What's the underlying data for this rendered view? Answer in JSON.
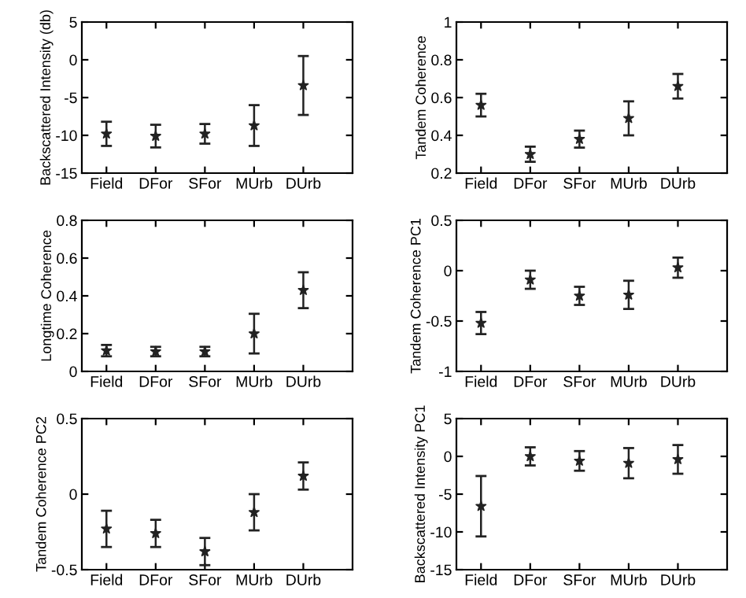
{
  "chart_data": [
    {
      "type": "scatter",
      "ylabel": "Backscattered Intensity (db)",
      "categories": [
        "Field",
        "DFor",
        "SFor",
        "MUrb",
        "DUrb"
      ],
      "series": [
        {
          "color": "#222222",
          "values": [
            -9.8,
            -10.1,
            -9.8,
            -8.7,
            -3.4
          ],
          "errors": [
            1.6,
            1.5,
            1.3,
            2.7,
            3.9
          ]
        }
      ],
      "ylim": [
        -15,
        5
      ],
      "yticks": [
        -15,
        -10,
        -5,
        0,
        5
      ],
      "marker": "star",
      "grid": false,
      "legend": false
    },
    {
      "type": "scatter",
      "ylabel": "Tandem Coherence",
      "categories": [
        "Field",
        "DFor",
        "SFor",
        "MUrb",
        "DUrb"
      ],
      "series": [
        {
          "color": "#222222",
          "values": [
            0.56,
            0.3,
            0.38,
            0.49,
            0.66
          ],
          "errors": [
            0.06,
            0.04,
            0.045,
            0.09,
            0.065
          ]
        }
      ],
      "ylim": [
        0.2,
        1
      ],
      "yticks": [
        0.2,
        0.4,
        0.6,
        0.8,
        1
      ],
      "marker": "star",
      "grid": false,
      "legend": false
    },
    {
      "type": "scatter",
      "ylabel": "Longtime Coherence",
      "categories": [
        "Field",
        "DFor",
        "SFor",
        "MUrb",
        "DUrb"
      ],
      "series": [
        {
          "color": "#222222",
          "values": [
            0.11,
            0.105,
            0.105,
            0.2,
            0.43
          ],
          "errors": [
            0.03,
            0.025,
            0.025,
            0.105,
            0.095
          ]
        }
      ],
      "ylim": [
        0,
        0.8
      ],
      "yticks": [
        0,
        0.2,
        0.4,
        0.6,
        0.8
      ],
      "marker": "star",
      "grid": false,
      "legend": false
    },
    {
      "type": "scatter",
      "ylabel": "Tandem Coherence PC1",
      "categories": [
        "Field",
        "DFor",
        "SFor",
        "MUrb",
        "DUrb"
      ],
      "series": [
        {
          "color": "#222222",
          "values": [
            -0.52,
            -0.09,
            -0.25,
            -0.24,
            0.03
          ],
          "errors": [
            0.11,
            0.09,
            0.09,
            0.14,
            0.1
          ]
        }
      ],
      "ylim": [
        -1,
        0.5
      ],
      "yticks": [
        -1,
        -0.5,
        0,
        0.5
      ],
      "marker": "star",
      "grid": false,
      "legend": false
    },
    {
      "type": "scatter",
      "ylabel": "Tandem Coherence PC2",
      "categories": [
        "Field",
        "DFor",
        "SFor",
        "MUrb",
        "DUrb"
      ],
      "series": [
        {
          "color": "#222222",
          "values": [
            -0.23,
            -0.26,
            -0.38,
            -0.12,
            0.12
          ],
          "errors": [
            0.12,
            0.09,
            0.09,
            0.12,
            0.09
          ]
        }
      ],
      "ylim": [
        -0.5,
        0.5
      ],
      "yticks": [
        -0.5,
        0,
        0.5
      ],
      "marker": "star",
      "grid": false,
      "legend": false
    },
    {
      "type": "scatter",
      "ylabel": "Backscattered Intensity PC1",
      "categories": [
        "Field",
        "DFor",
        "SFor",
        "MUrb",
        "DUrb"
      ],
      "series": [
        {
          "color": "#222222",
          "values": [
            -6.6,
            0,
            -0.6,
            -0.9,
            -0.4
          ],
          "errors": [
            4,
            1.2,
            1.3,
            2,
            1.9
          ]
        }
      ],
      "ylim": [
        -15,
        5
      ],
      "yticks": [
        -15,
        -10,
        -5,
        0,
        5
      ],
      "marker": "star",
      "grid": false,
      "legend": false
    }
  ]
}
